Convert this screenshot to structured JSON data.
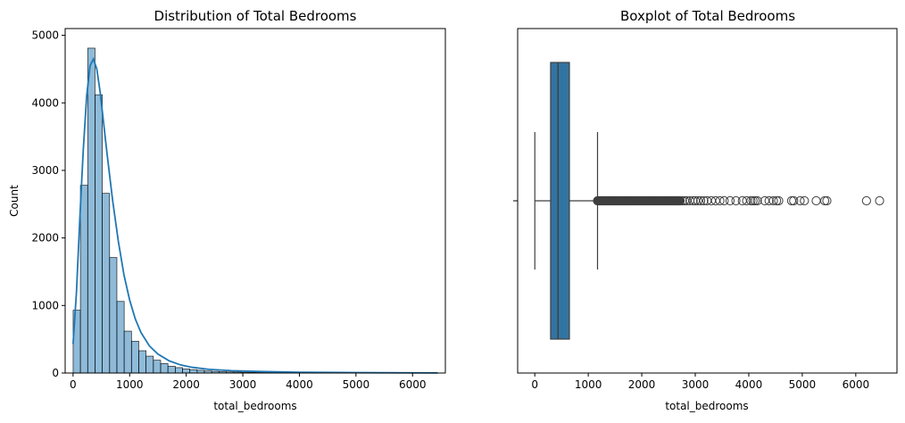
{
  "chart_data": [
    {
      "type": "bar",
      "title": "Distribution of Total Bedrooms",
      "xlabel": "total_bedrooms",
      "ylabel": "Count",
      "xlim": [
        -140,
        6580
      ],
      "ylim": [
        0,
        5100
      ],
      "xticks": [
        0,
        1000,
        2000,
        3000,
        4000,
        5000,
        6000
      ],
      "yticks": [
        0,
        1000,
        2000,
        3000,
        4000,
        5000
      ],
      "bin_start": 1,
      "bin_width": 128.9,
      "counts": [
        930,
        2780,
        4810,
        4120,
        2660,
        1710,
        1060,
        620,
        470,
        330,
        250,
        190,
        140,
        100,
        80,
        60,
        50,
        40,
        30,
        25,
        20,
        16,
        14,
        12,
        10,
        8,
        7,
        6,
        5,
        5,
        4,
        4,
        3,
        3,
        2,
        2,
        2,
        2,
        1,
        1,
        1,
        1,
        1,
        1,
        1,
        1,
        1,
        1,
        1,
        1
      ],
      "kde": {
        "x": [
          0,
          60,
          120,
          180,
          240,
          300,
          360,
          420,
          480,
          540,
          600,
          700,
          800,
          900,
          1000,
          1100,
          1200,
          1350,
          1500,
          1700,
          1900,
          2100,
          2400,
          2800,
          3300,
          4000,
          5000,
          6445
        ],
        "y": [
          430,
          1200,
          2300,
          3300,
          4100,
          4550,
          4650,
          4500,
          4150,
          3700,
          3250,
          2550,
          1950,
          1450,
          1080,
          800,
          600,
          400,
          280,
          180,
          120,
          85,
          55,
          35,
          22,
          12,
          6,
          2
        ]
      },
      "colors": {
        "bar_fill": "#1f77b4",
        "bar_alpha": 0.5,
        "kde_line": "#1f77b4"
      }
    },
    {
      "type": "box",
      "title": "Boxplot of Total Bedrooms",
      "xlabel": "total_bedrooms",
      "xlim": [
        -320,
        6770
      ],
      "xticks": [
        0,
        1000,
        2000,
        3000,
        4000,
        5000,
        6000
      ],
      "whisker_low": 1,
      "q1": 296,
      "median": 435,
      "q3": 647,
      "whisker_high": 1173,
      "outlier_band": [
        1173,
        2720
      ],
      "outliers": [
        2760,
        2800,
        2840,
        2900,
        2960,
        3000,
        3050,
        3100,
        3160,
        3220,
        3300,
        3380,
        3460,
        3540,
        3650,
        3760,
        3880,
        3960,
        4040,
        4080,
        4120,
        4160,
        4300,
        4380,
        4460,
        4520,
        4560,
        4800,
        4840,
        4960,
        5040,
        5260,
        5420,
        5460,
        6200,
        6445
      ],
      "colors": {
        "box_fill": "#3274a1",
        "line": "#3f3f3f"
      }
    }
  ]
}
